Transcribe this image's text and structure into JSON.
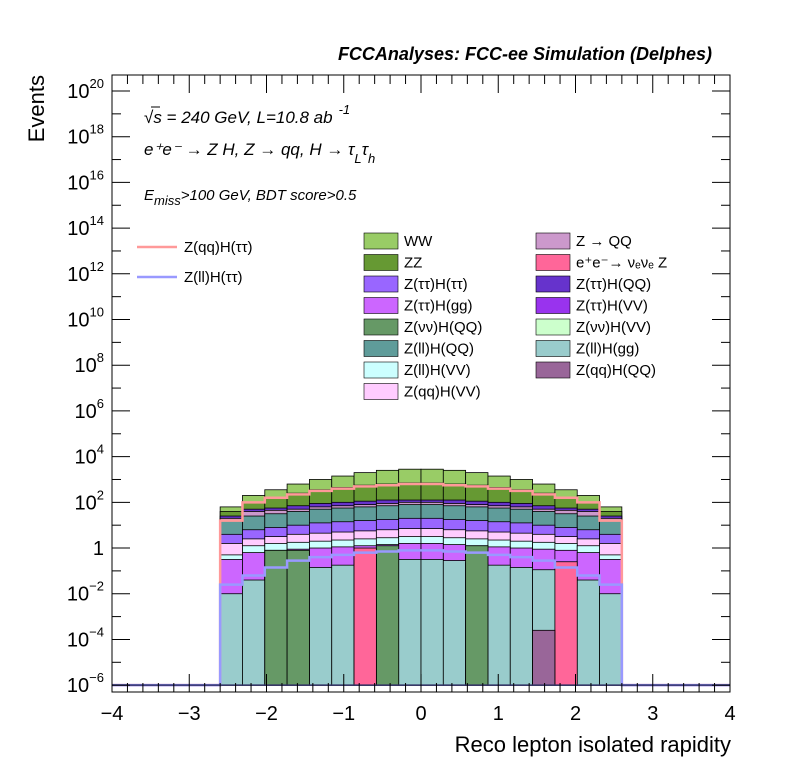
{
  "chart_data": {
    "type": "histogram-stacked-log",
    "title": "FCCAnalyses: FCC-ee Simulation (Delphes)",
    "xlabel": "Reco lepton isolated rapidity",
    "ylabel": "Events",
    "xlim": [
      -4,
      4
    ],
    "ylim_log10": [
      -6.3,
      20.7
    ],
    "x_ticks": [
      "−4",
      "−3",
      "−2",
      "−1",
      "0",
      "1",
      "2",
      "3",
      "4"
    ],
    "y_ticks": [
      {
        "base": "10",
        "exp": "−6",
        "log": -6
      },
      {
        "base": "10",
        "exp": "−4",
        "log": -4
      },
      {
        "base": "10",
        "exp": "−2",
        "log": -2
      },
      {
        "base": "1",
        "exp": "",
        "log": 0
      },
      {
        "base": "10",
        "exp": "2",
        "log": 2
      },
      {
        "base": "10",
        "exp": "4",
        "log": 4
      },
      {
        "base": "10",
        "exp": "6",
        "log": 6
      },
      {
        "base": "10",
        "exp": "8",
        "log": 8
      },
      {
        "base": "10",
        "exp": "10",
        "log": 10
      },
      {
        "base": "10",
        "exp": "12",
        "log": 12
      },
      {
        "base": "10",
        "exp": "14",
        "log": 14
      },
      {
        "base": "10",
        "exp": "16",
        "log": 16
      },
      {
        "base": "10",
        "exp": "18",
        "log": 18
      },
      {
        "base": "10",
        "exp": "20",
        "log": 20
      }
    ],
    "annotations": {
      "energy": "√s = 240 GeV, L=10.8 ab",
      "energy_exp": "-1",
      "process": "e⁺e⁻ → Z H, Z  → qq, H  → τ",
      "process_sub1": "L",
      "process_tau": "τ",
      "process_sub2": "h",
      "selection_e": "E",
      "selection_sub": "miss",
      "selection_rest": ">100 GeV, BDT score>0.5"
    },
    "bins": {
      "low": -2.6,
      "high": 2.6,
      "n": 18
    },
    "stacked_cumulative_log10": [
      {
        "name": "Z(ll)H(gg)",
        "color": "#99cccc",
        "values": [
          -2.0,
          -1.4,
          -1.1,
          -0.95,
          -0.85,
          -0.75,
          -0.65,
          -0.55,
          -0.5,
          -0.5,
          -0.55,
          -0.65,
          -0.75,
          -0.85,
          -0.95,
          -1.1,
          -1.4,
          -2.0
        ]
      },
      {
        "name": "Z(ττ)H(gg)",
        "color": "#cc66ff",
        "values": [
          -0.5,
          -0.2,
          -0.1,
          -0.05,
          0.0,
          0.05,
          0.1,
          0.15,
          0.2,
          0.2,
          0.15,
          0.1,
          0.05,
          0.0,
          -0.05,
          -0.1,
          -0.2,
          -0.5
        ]
      },
      {
        "name": "Z(ll)H(VV)",
        "color": "#ccffff",
        "values": [
          -0.3,
          0.1,
          0.2,
          0.25,
          0.3,
          0.35,
          0.4,
          0.45,
          0.5,
          0.5,
          0.45,
          0.4,
          0.35,
          0.3,
          0.25,
          0.2,
          0.1,
          -0.3
        ]
      },
      {
        "name": "Z(qq)H(VV)",
        "color": "#ffccff",
        "values": [
          0.2,
          0.4,
          0.5,
          0.6,
          0.65,
          0.7,
          0.75,
          0.8,
          0.85,
          0.85,
          0.8,
          0.75,
          0.7,
          0.65,
          0.6,
          0.5,
          0.4,
          0.2
        ]
      },
      {
        "name": "Z(ττ)H(ττ)",
        "color": "#9966ff",
        "values": [
          0.6,
          0.8,
          0.9,
          1.0,
          1.1,
          1.15,
          1.2,
          1.25,
          1.3,
          1.3,
          1.25,
          1.2,
          1.15,
          1.1,
          1.0,
          0.9,
          0.8,
          0.6
        ]
      },
      {
        "name": "Z(ll)H(QQ)",
        "color": "#5f9c9a",
        "values": [
          1.2,
          1.4,
          1.5,
          1.6,
          1.7,
          1.75,
          1.8,
          1.85,
          1.9,
          1.9,
          1.85,
          1.8,
          1.75,
          1.7,
          1.6,
          1.5,
          1.4,
          1.2
        ]
      },
      {
        "name": "Z → QQ",
        "color": "#cc99cc",
        "values": [
          1.3,
          1.6,
          1.65,
          1.7,
          1.8,
          1.85,
          1.9,
          1.95,
          2.0,
          2.0,
          1.95,
          1.9,
          1.85,
          1.8,
          1.7,
          1.65,
          1.6,
          1.3
        ]
      },
      {
        "name": "Z(ττ)H(QQ)",
        "color": "#6633cc",
        "values": [
          1.4,
          1.7,
          1.75,
          1.85,
          1.95,
          2.0,
          2.05,
          2.1,
          2.1,
          2.1,
          2.1,
          2.05,
          2.0,
          1.95,
          1.85,
          1.75,
          1.7,
          1.4
        ]
      },
      {
        "name": "ZZ",
        "color": "#669933",
        "values": [
          1.6,
          2.0,
          2.2,
          2.4,
          2.55,
          2.65,
          2.75,
          2.8,
          2.85,
          2.85,
          2.8,
          2.75,
          2.65,
          2.55,
          2.4,
          2.2,
          2.0,
          1.6
        ]
      },
      {
        "name": "WW",
        "color": "#99cc66",
        "values": [
          1.8,
          2.3,
          2.55,
          2.8,
          3.0,
          3.15,
          3.3,
          3.4,
          3.45,
          3.45,
          3.4,
          3.3,
          3.15,
          3.0,
          2.8,
          2.55,
          2.3,
          1.8
        ]
      }
    ],
    "sparse_bars_log10": [
      {
        "name": "Z(νν)H(QQ)",
        "color": "#669966",
        "bins": [
          2,
          3,
          7,
          11
        ],
        "values": [
          -0.1,
          -0.1,
          0.1,
          0.1
        ]
      },
      {
        "name": "e⁺e⁻→ νₑνₑ Z",
        "color": "#ff6699",
        "bins": [
          6,
          15
        ],
        "values": [
          0.0,
          -0.6
        ]
      },
      {
        "name": "Z(qq)H(QQ)",
        "color": "#996699",
        "bins": [
          14
        ],
        "values": [
          -3.6
        ]
      }
    ],
    "signal_lines_log10": [
      {
        "name": "Z(qq)H(ττ)",
        "color": "#ff9999",
        "values": [
          1.2,
          2.0,
          2.2,
          2.35,
          2.5,
          2.6,
          2.7,
          2.75,
          2.8,
          2.8,
          2.75,
          2.7,
          2.6,
          2.5,
          2.35,
          2.2,
          2.0,
          1.2
        ]
      },
      {
        "name": "Z(ll)H(ττ)",
        "color": "#9999ff",
        "values": [
          -1.6,
          -1.2,
          -0.85,
          -0.55,
          -0.4,
          -0.3,
          -0.2,
          -0.15,
          -0.1,
          -0.1,
          -0.15,
          -0.2,
          -0.3,
          -0.4,
          -0.55,
          -0.85,
          -1.2,
          -1.6
        ]
      }
    ],
    "legend_left": [
      {
        "label": "Z(qq)H(ττ)",
        "color": "#ff9999",
        "kind": "line"
      },
      {
        "label": "Z(ll)H(ττ)",
        "color": "#9999ff",
        "kind": "line"
      }
    ],
    "legend_mid": [
      {
        "label": "WW",
        "color": "#99cc66"
      },
      {
        "label": "ZZ",
        "color": "#669933"
      },
      {
        "label": "Z(ττ)H(ττ)",
        "color": "#9966ff"
      },
      {
        "label": "Z(ττ)H(gg)",
        "color": "#cc66ff"
      },
      {
        "label": "Z(νν)H(QQ)",
        "color": "#669966"
      },
      {
        "label": "Z(ll)H(QQ)",
        "color": "#5f9c9a"
      },
      {
        "label": "Z(ll)H(VV)",
        "color": "#ccffff"
      },
      {
        "label": "Z(qq)H(VV)",
        "color": "#ffccff"
      }
    ],
    "legend_right": [
      {
        "label": "Z → QQ",
        "color": "#cc99cc"
      },
      {
        "label": "e⁺e⁻→ νₑνₑ Z",
        "color": "#ff6699"
      },
      {
        "label": "Z(ττ)H(QQ)",
        "color": "#6633cc"
      },
      {
        "label": "Z(ττ)H(VV)",
        "color": "#9933ee"
      },
      {
        "label": "Z(νν)H(VV)",
        "color": "#ccffcc"
      },
      {
        "label": "Z(ll)H(gg)",
        "color": "#99cccc"
      },
      {
        "label": "Z(qq)H(QQ)",
        "color": "#996699"
      }
    ]
  }
}
